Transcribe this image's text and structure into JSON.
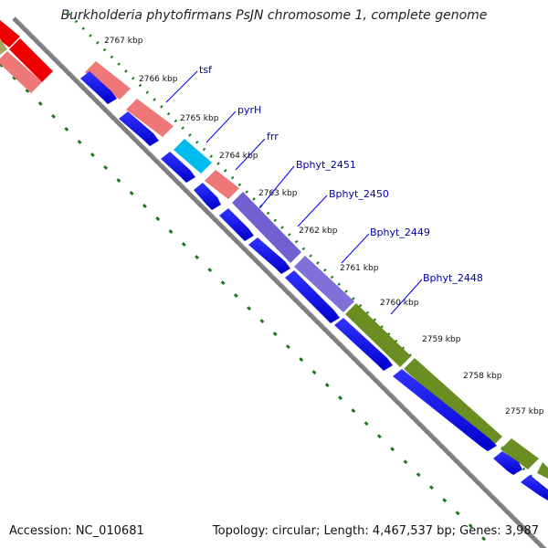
{
  "title": "Burkholderia phytofirmans PsJN chromosome 1, complete genome",
  "accession": "Accession: NC_010681",
  "topology": "Topology: circular; Length: 4,467,537 bp; Genes: 3,987",
  "tick_labels": [
    "2767 kbp",
    "2766 kbp",
    "2765 kbp",
    "2764 kbp",
    "2763 kbp",
    "2762 kbp",
    "2761 kbp",
    "2760 kbp",
    "2759 kbp",
    "2758 kbp",
    "2757 kbp"
  ],
  "gene_labels": [
    "tsf",
    "pyrH",
    "frr",
    "Bphyt_2451",
    "Bphyt_2450",
    "Bphyt_2449",
    "Bphyt_2448"
  ],
  "colors": {
    "backbone": "#808080",
    "cds_arrow": "#0000ee",
    "red_feature": "#ee0000",
    "pink_feature": "#ee7777",
    "cyan_feature": "#00bbee",
    "purple_feature": "#7060d0",
    "olive_feature": "#6b8e23",
    "tick_dots": "#1a7a1a",
    "label_line": "#0000ee"
  }
}
